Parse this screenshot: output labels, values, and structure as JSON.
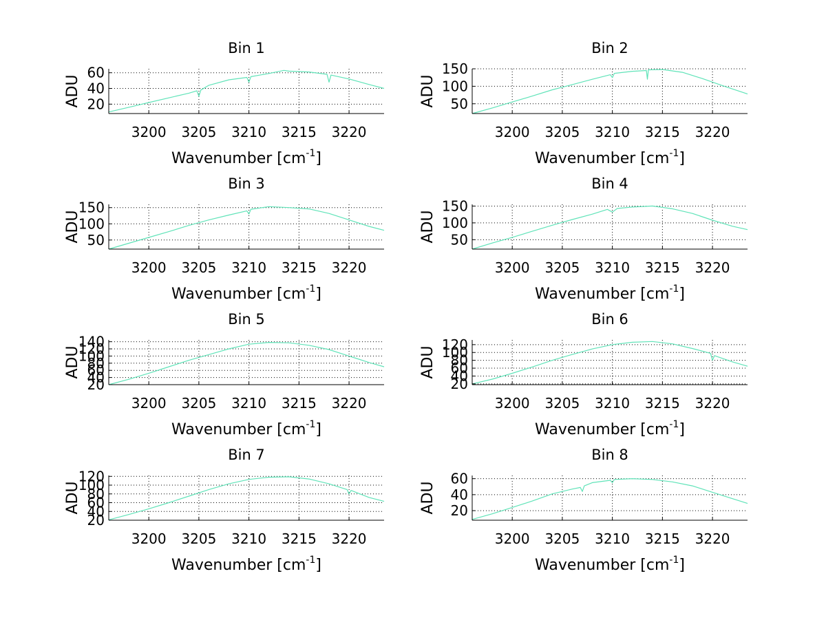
{
  "figure": {
    "background": "#ffffff"
  },
  "chart_data": [
    {
      "type": "line",
      "title": "Bin 1",
      "xlabel": "Wavenumber [cm",
      "xlabel_sup": "-1",
      "xlabel_end": "]",
      "ylabel": "ADU",
      "xlim": [
        3196,
        3223.5
      ],
      "ylim": [
        8,
        65
      ],
      "xticks": [
        3200,
        3205,
        3210,
        3215,
        3220
      ],
      "yticks": [
        20,
        40,
        60
      ],
      "grid": true,
      "color": "#5fe3b8",
      "series": [
        {
          "x": [
            3196,
            3198,
            3200,
            3202,
            3204,
            3204.8,
            3205,
            3205.2,
            3206,
            3208,
            3209.8,
            3210,
            3210.2,
            3212,
            3213.5,
            3214,
            3216,
            3217.8,
            3218,
            3218.2,
            3220,
            3222,
            3223.5
          ],
          "y": [
            10,
            16,
            22,
            28,
            34,
            37,
            30,
            38,
            44,
            51,
            54,
            48,
            55,
            59,
            63,
            62,
            61,
            58,
            48,
            57,
            52,
            45,
            40
          ]
        }
      ]
    },
    {
      "type": "line",
      "title": "Bin 2",
      "xlabel": "Wavenumber [cm",
      "xlabel_sup": "-1",
      "xlabel_end": "]",
      "ylabel": "ADU",
      "xlim": [
        3196,
        3223.5
      ],
      "ylim": [
        22,
        150
      ],
      "xticks": [
        3200,
        3205,
        3210,
        3215,
        3220
      ],
      "yticks": [
        50,
        100,
        150
      ],
      "grid": true,
      "color": "#5fe3b8",
      "series": [
        {
          "x": [
            3196,
            3198,
            3200,
            3202,
            3204,
            3206,
            3208,
            3209.8,
            3210,
            3210.2,
            3212,
            3213.4,
            3213.5,
            3213.6,
            3215,
            3217,
            3219,
            3221,
            3223.5
          ],
          "y": [
            22,
            38,
            55,
            72,
            90,
            105,
            120,
            133,
            125,
            137,
            143,
            145,
            120,
            147,
            148,
            140,
            122,
            102,
            78
          ]
        }
      ]
    },
    {
      "type": "line",
      "title": "Bin 3",
      "xlabel": "Wavenumber [cm",
      "xlabel_sup": "-1",
      "xlabel_end": "]",
      "ylabel": "ADU",
      "xlim": [
        3196,
        3223.5
      ],
      "ylim": [
        22,
        160
      ],
      "xticks": [
        3200,
        3205,
        3210,
        3215,
        3220
      ],
      "yticks": [
        50,
        100,
        150
      ],
      "grid": true,
      "color": "#5fe3b8",
      "series": [
        {
          "x": [
            3196,
            3198,
            3200,
            3202,
            3204,
            3206,
            3208,
            3209.8,
            3210,
            3210.2,
            3212,
            3214,
            3216,
            3218,
            3220,
            3222,
            3223.5
          ],
          "y": [
            22,
            40,
            58,
            76,
            95,
            112,
            127,
            140,
            130,
            145,
            153,
            150,
            146,
            132,
            112,
            92,
            80
          ]
        }
      ]
    },
    {
      "type": "line",
      "title": "Bin 4",
      "xlabel": "Wavenumber [cm",
      "xlabel_sup": "-1",
      "xlabel_end": "]",
      "ylabel": "ADU",
      "xlim": [
        3196,
        3223.5
      ],
      "ylim": [
        22,
        155
      ],
      "xticks": [
        3200,
        3205,
        3210,
        3215,
        3220
      ],
      "yticks": [
        50,
        100,
        150
      ],
      "grid": true,
      "color": "#5fe3b8",
      "series": [
        {
          "x": [
            3196,
            3198,
            3200,
            3202,
            3204,
            3206,
            3208,
            3209.5,
            3210,
            3210.5,
            3212,
            3214,
            3216,
            3218,
            3220,
            3222,
            3223.5
          ],
          "y": [
            22,
            40,
            57,
            75,
            93,
            110,
            126,
            140,
            132,
            143,
            147,
            150,
            142,
            128,
            108,
            90,
            80
          ]
        }
      ]
    },
    {
      "type": "line",
      "title": "Bin 5",
      "xlabel": "Wavenumber [cm",
      "xlabel_sup": "-1",
      "xlabel_end": "]",
      "ylabel": "ADU",
      "xlim": [
        3196,
        3223.5
      ],
      "ylim": [
        20,
        145
      ],
      "xticks": [
        3200,
        3205,
        3210,
        3215,
        3220
      ],
      "yticks": [
        20,
        40,
        60,
        80,
        100,
        120,
        140
      ],
      "grid": true,
      "color": "#5fe3b8",
      "series": [
        {
          "x": [
            3196,
            3198,
            3200,
            3202,
            3204,
            3206,
            3208,
            3210,
            3212,
            3214,
            3216,
            3218,
            3220,
            3222,
            3223.5
          ],
          "y": [
            20,
            35,
            52,
            70,
            88,
            104,
            120,
            133,
            138,
            137,
            130,
            118,
            100,
            82,
            70
          ]
        }
      ]
    },
    {
      "type": "line",
      "title": "Bin 6",
      "xlabel": "Wavenumber [cm",
      "xlabel_sup": "-1",
      "xlabel_end": "]",
      "ylabel": "ADU",
      "xlim": [
        3196,
        3223.5
      ],
      "ylim": [
        18,
        132
      ],
      "xticks": [
        3200,
        3205,
        3210,
        3215,
        3220
      ],
      "yticks": [
        20,
        40,
        60,
        80,
        100,
        120
      ],
      "grid": true,
      "color": "#5fe3b8",
      "series": [
        {
          "x": [
            3196,
            3198,
            3200,
            3202,
            3204,
            3206,
            3208,
            3210,
            3212,
            3214,
            3216,
            3218,
            3219.8,
            3220,
            3220.2,
            3222,
            3223.5
          ],
          "y": [
            20,
            32,
            47,
            63,
            80,
            95,
            109,
            120,
            126,
            128,
            122,
            110,
            98,
            80,
            92,
            76,
            65
          ]
        }
      ]
    },
    {
      "type": "line",
      "title": "Bin 7",
      "xlabel": "Wavenumber [cm",
      "xlabel_sup": "-1",
      "xlabel_end": "]",
      "ylabel": "ADU",
      "xlim": [
        3196,
        3223.5
      ],
      "ylim": [
        20,
        122
      ],
      "xticks": [
        3200,
        3205,
        3210,
        3215,
        3220
      ],
      "yticks": [
        20,
        40,
        60,
        80,
        100,
        120
      ],
      "grid": true,
      "color": "#5fe3b8",
      "series": [
        {
          "x": [
            3196,
            3198,
            3200,
            3202,
            3204,
            3206,
            3208,
            3210,
            3212,
            3214,
            3216,
            3218,
            3219.8,
            3220,
            3220.2,
            3222,
            3223.5
          ],
          "y": [
            21,
            33,
            46,
            60,
            75,
            90,
            103,
            113,
            118,
            119,
            114,
            103,
            90,
            80,
            88,
            72,
            63
          ]
        }
      ]
    },
    {
      "type": "line",
      "title": "Bin 8",
      "xlabel": "Wavenumber [cm",
      "xlabel_sup": "-1",
      "xlabel_end": "]",
      "ylabel": "ADU",
      "xlim": [
        3196,
        3223.5
      ],
      "ylim": [
        8,
        64
      ],
      "xticks": [
        3200,
        3205,
        3210,
        3215,
        3220
      ],
      "yticks": [
        20,
        40,
        60
      ],
      "grid": true,
      "color": "#5fe3b8",
      "series": [
        {
          "x": [
            3196,
            3198,
            3200,
            3202,
            3204,
            3206,
            3206.8,
            3207,
            3207.2,
            3208,
            3209.8,
            3210,
            3210.2,
            3212,
            3214,
            3216,
            3218,
            3220,
            3222,
            3223.5
          ],
          "y": [
            9,
            16,
            24,
            32,
            41,
            47,
            49,
            44,
            51,
            55,
            58,
            55,
            59,
            60,
            59,
            56,
            51,
            43,
            35,
            29
          ]
        }
      ]
    }
  ]
}
